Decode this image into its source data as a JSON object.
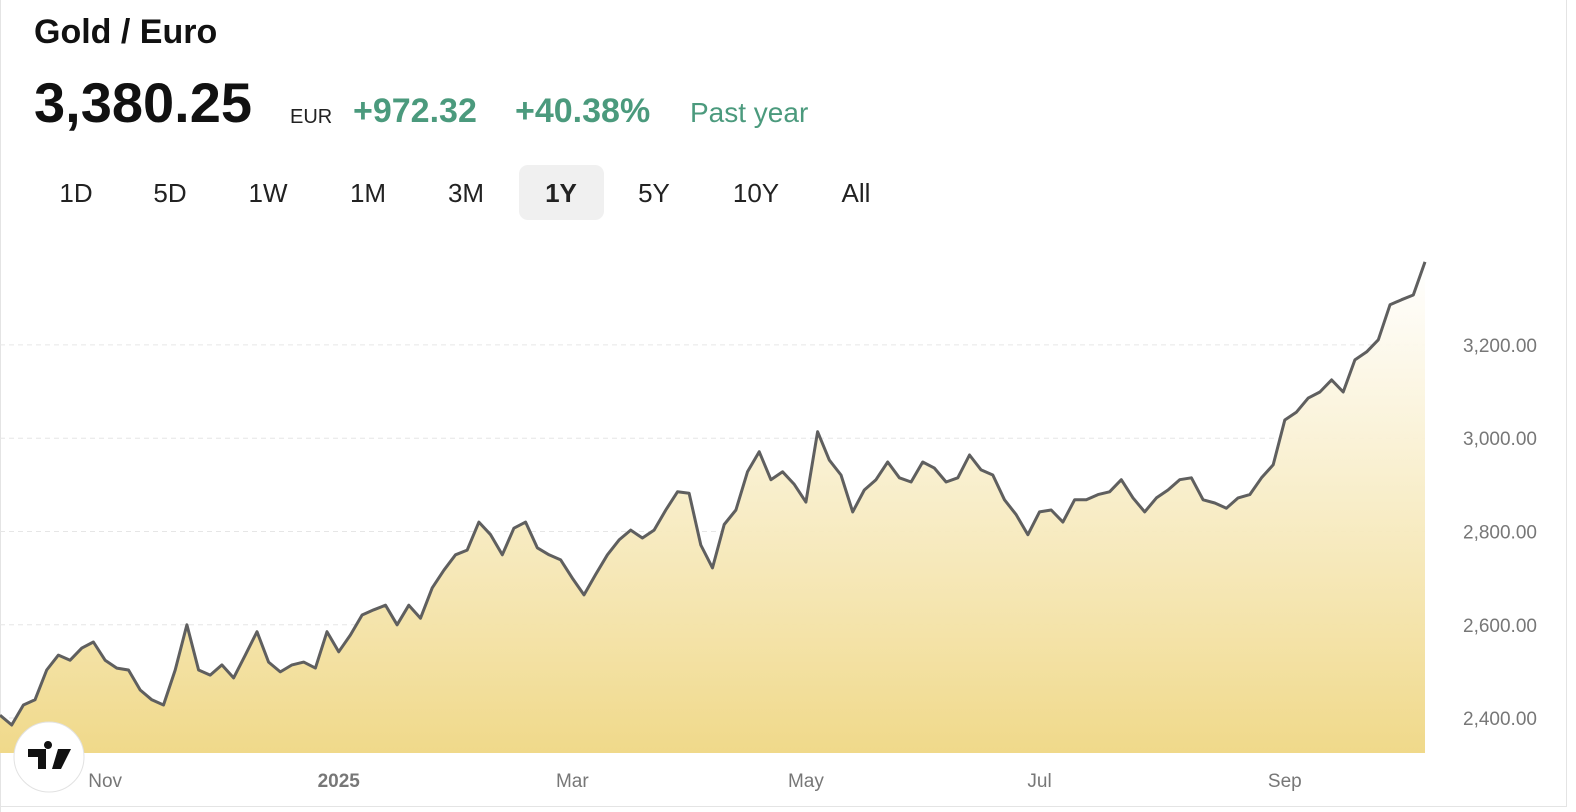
{
  "header": {
    "title": "Gold / Euro",
    "price": "3,380.25",
    "currency": "EUR",
    "change": "+972.32",
    "change_percent": "+40.38%",
    "period": "Past year"
  },
  "ranges": {
    "options": [
      "1D",
      "5D",
      "1W",
      "1M",
      "3M",
      "1Y",
      "5Y",
      "10Y",
      "All"
    ],
    "selected": "1Y"
  },
  "chart_data": {
    "type": "area",
    "line_color": "#5f5f5f",
    "fill_color": "#f0d98a",
    "grid": true,
    "categories": [
      null,
      null,
      null,
      null,
      null,
      null,
      null,
      null,
      null,
      "Nov",
      null,
      null,
      null,
      null,
      null,
      null,
      null,
      null,
      null,
      null,
      null,
      null,
      null,
      null,
      null,
      null,
      null,
      null,
      null,
      "2025",
      null,
      null,
      null,
      null,
      null,
      null,
      null,
      null,
      null,
      null,
      null,
      null,
      null,
      null,
      null,
      null,
      null,
      null,
      null,
      "Mar",
      null,
      null,
      null,
      null,
      null,
      null,
      null,
      null,
      null,
      null,
      null,
      null,
      null,
      null,
      null,
      null,
      null,
      null,
      null,
      "May",
      null,
      null,
      null,
      null,
      null,
      null,
      null,
      null,
      null,
      null,
      null,
      null,
      null,
      null,
      null,
      null,
      null,
      null,
      null,
      "Jul",
      null,
      null,
      null,
      null,
      null,
      null,
      null,
      null,
      null,
      null,
      null,
      null,
      null,
      null,
      null,
      null,
      null,
      null,
      null,
      null,
      "Sep",
      null,
      null,
      null,
      null,
      null,
      null,
      null,
      null,
      null,
      null,
      null,
      null
    ],
    "values": [
      2406,
      2385,
      2428,
      2439,
      2503,
      2535,
      2524,
      2550,
      2563,
      2524,
      2507,
      2503,
      2460,
      2439,
      2428,
      2503,
      2600,
      2503,
      2492,
      2514,
      2486,
      2535,
      2585,
      2520,
      2499,
      2514,
      2520,
      2507,
      2585,
      2542,
      2578,
      2621,
      2632,
      2642,
      2600,
      2642,
      2614,
      2679,
      2717,
      2750,
      2760,
      2820,
      2793,
      2750,
      2807,
      2820,
      2765,
      2750,
      2739,
      2700,
      2664,
      2708,
      2750,
      2782,
      2803,
      2786,
      2803,
      2846,
      2885,
      2882,
      2771,
      2722,
      2815,
      2846,
      2928,
      2971,
      2911,
      2928,
      2901,
      2863,
      3014,
      2953,
      2921,
      2842,
      2889,
      2911,
      2949,
      2915,
      2906,
      2949,
      2936,
      2906,
      2915,
      2964,
      2932,
      2921,
      2868,
      2836,
      2793,
      2842,
      2846,
      2820,
      2868,
      2868,
      2879,
      2885,
      2911,
      2872,
      2842,
      2872,
      2889,
      2911,
      2915,
      2868,
      2861,
      2850,
      2872,
      2879,
      2915,
      2943,
      3039,
      3056,
      3086,
      3099,
      3125,
      3099,
      3168,
      3185,
      3211,
      3286,
      3297,
      3307,
      3378
    ],
    "ylim": [
      2325,
      3425
    ],
    "yticks": [
      {
        "value": 2400,
        "label": "2,400.00"
      },
      {
        "value": 2600,
        "label": "2,600.00"
      },
      {
        "value": 2800,
        "label": "2,800.00"
      },
      {
        "value": 3000,
        "label": "3,000.00"
      },
      {
        "value": 3200,
        "label": "3,200.00"
      }
    ]
  }
}
